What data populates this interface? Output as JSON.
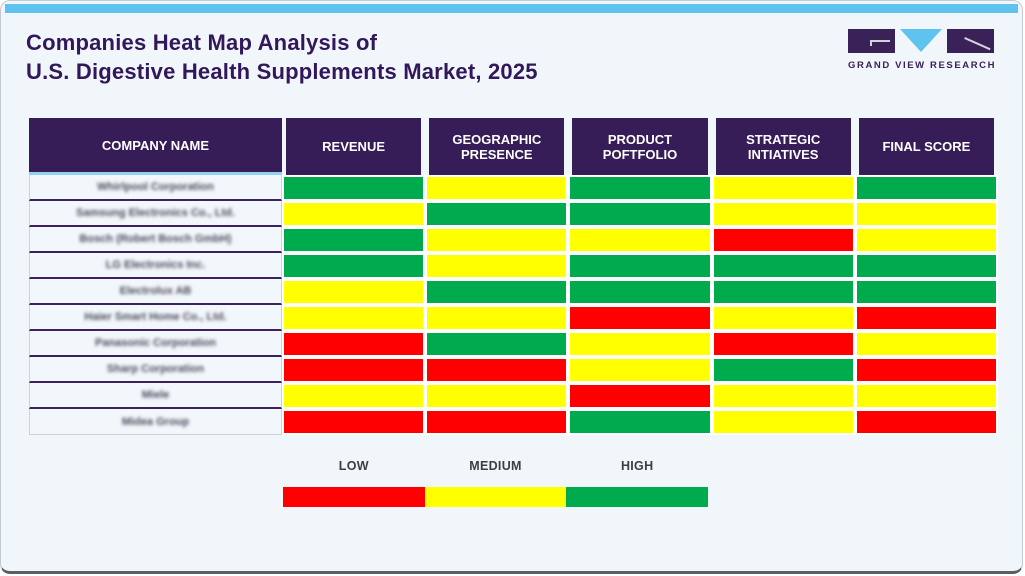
{
  "header": {
    "title_line1": "Companies Heat Map Analysis of",
    "title_line2": "U.S. Digestive Health Supplements Market, 2025",
    "logo_text": "GRAND VIEW RESEARCH"
  },
  "table": {
    "columns": [
      "COMPANY NAME",
      "REVENUE",
      "GEOGRAPHIC PRESENCE",
      "PRODUCT POFTFOLIO",
      "STRATEGIC INTIATIVES",
      "FINAL SCORE"
    ],
    "rows": [
      {
        "company": "Whirlpool Corporation",
        "scores": [
          "high",
          "medium",
          "high",
          "medium",
          "high"
        ]
      },
      {
        "company": "Samsung Electronics Co., Ltd.",
        "scores": [
          "medium",
          "high",
          "high",
          "medium",
          "medium"
        ]
      },
      {
        "company": "Bosch (Robert Bosch GmbH)",
        "scores": [
          "high",
          "medium",
          "medium",
          "low",
          "medium"
        ]
      },
      {
        "company": "LG Electronics Inc.",
        "scores": [
          "high",
          "medium",
          "high",
          "high",
          "high"
        ]
      },
      {
        "company": "Electrolux AB",
        "scores": [
          "medium",
          "high",
          "high",
          "high",
          "high"
        ]
      },
      {
        "company": "Haier Smart Home Co., Ltd.",
        "scores": [
          "medium",
          "medium",
          "low",
          "medium",
          "low"
        ]
      },
      {
        "company": "Panasonic Corporation",
        "scores": [
          "low",
          "high",
          "medium",
          "low",
          "medium"
        ]
      },
      {
        "company": "Sharp Corporation",
        "scores": [
          "low",
          "low",
          "medium",
          "high",
          "low"
        ]
      },
      {
        "company": "Miele",
        "scores": [
          "medium",
          "medium",
          "low",
          "medium",
          "medium"
        ]
      },
      {
        "company": "Midea Group",
        "scores": [
          "low",
          "low",
          "high",
          "medium",
          "low"
        ]
      }
    ]
  },
  "legend": {
    "items": [
      {
        "key": "low",
        "label": "LOW",
        "color": "#ff0000"
      },
      {
        "key": "medium",
        "label": "MEDIUM",
        "color": "#ffff00"
      },
      {
        "key": "high",
        "label": "HIGH",
        "color": "#00ab4e"
      }
    ]
  },
  "colors": {
    "low": "#ff0000",
    "medium": "#ffff00",
    "high": "#00ab4e",
    "header_bg": "#371d57",
    "accent_bar": "#5ec3ee",
    "title_text": "#33175b"
  },
  "chart_data": {
    "type": "heatmap",
    "title": "Companies Heat Map Analysis of U.S. Digestive Health Supplements Market, 2025",
    "x_categories": [
      "REVENUE",
      "GEOGRAPHIC PRESENCE",
      "PRODUCT POFTFOLIO",
      "STRATEGIC INTIATIVES",
      "FINAL SCORE"
    ],
    "y_categories": [
      "Whirlpool Corporation",
      "Samsung Electronics Co., Ltd.",
      "Bosch (Robert Bosch GmbH)",
      "LG Electronics Inc.",
      "Electrolux AB",
      "Haier Smart Home Co., Ltd.",
      "Panasonic Corporation",
      "Sharp Corporation",
      "Miele",
      "Midea Group"
    ],
    "values": [
      [
        "high",
        "medium",
        "high",
        "medium",
        "high"
      ],
      [
        "medium",
        "high",
        "high",
        "medium",
        "medium"
      ],
      [
        "high",
        "medium",
        "medium",
        "low",
        "medium"
      ],
      [
        "high",
        "medium",
        "high",
        "high",
        "high"
      ],
      [
        "medium",
        "high",
        "high",
        "high",
        "high"
      ],
      [
        "medium",
        "medium",
        "low",
        "medium",
        "low"
      ],
      [
        "low",
        "high",
        "medium",
        "low",
        "medium"
      ],
      [
        "low",
        "low",
        "medium",
        "high",
        "low"
      ],
      [
        "medium",
        "medium",
        "low",
        "medium",
        "medium"
      ],
      [
        "low",
        "low",
        "high",
        "medium",
        "low"
      ]
    ],
    "scale": {
      "low": "#ff0000",
      "medium": "#ffff00",
      "high": "#00ab4e"
    },
    "legend_position": "bottom"
  }
}
